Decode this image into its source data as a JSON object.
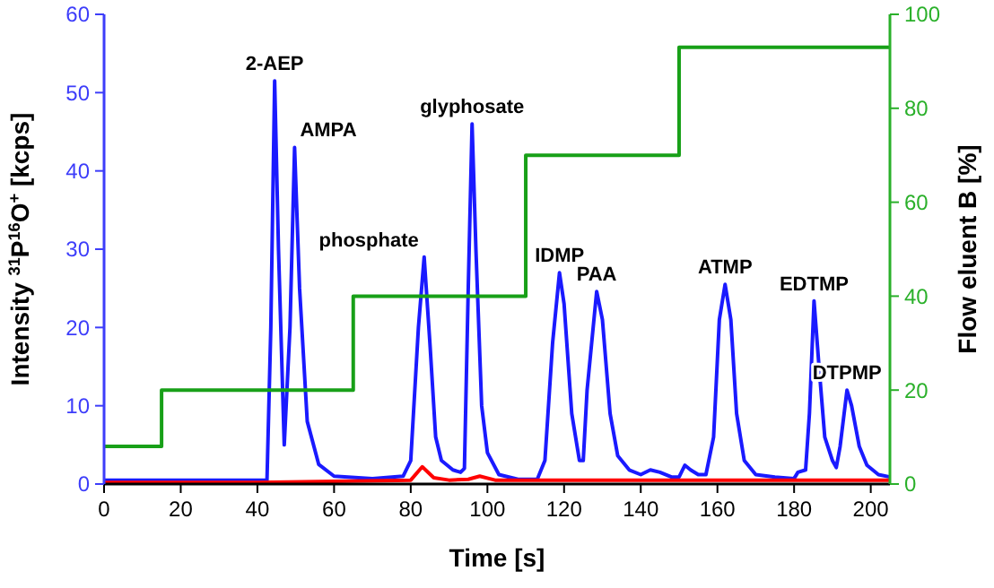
{
  "chart_data": {
    "type": "line",
    "xlabel": "Time [s]",
    "ylabel": "Intensity $^{31}$P$^{16}$O$^{+}$  [kcps]",
    "y2label": "Flow eluent B [%]",
    "xlim": [
      0,
      205
    ],
    "xticks": [
      0,
      20,
      40,
      60,
      80,
      100,
      120,
      140,
      160,
      180,
      200
    ],
    "ylim": [
      0,
      60
    ],
    "yticks": [
      0,
      10,
      20,
      30,
      40,
      50,
      60
    ],
    "y2lim": [
      0,
      100
    ],
    "y2ticks": [
      0,
      20,
      40,
      60,
      80,
      100
    ],
    "grid": false,
    "marker": "none",
    "line_style": "solid",
    "series": [
      {
        "color": "#1a1aff",
        "x": [
          0,
          20,
          42.5,
          43.5,
          44.5,
          45.5,
          47,
          48.5,
          49.7,
          51,
          53,
          56,
          60,
          70,
          78,
          80,
          82,
          83.5,
          85,
          86.5,
          88,
          91,
          93,
          94,
          95,
          96,
          97,
          98.5,
          100,
          103,
          108,
          113,
          115,
          117,
          118.8,
          120,
          122,
          124,
          125,
          126,
          128.5,
          130,
          132,
          134,
          137,
          140,
          142.5,
          145,
          148,
          150,
          151.5,
          153,
          155,
          157,
          159,
          160.5,
          162,
          163.5,
          165,
          167,
          170,
          175,
          180,
          181,
          183,
          184,
          185.2,
          186.5,
          188,
          190,
          191,
          192,
          193.8,
          195,
          197,
          199,
          202,
          205
        ],
        "values": [
          0.5,
          0.5,
          0.5,
          20,
          51.5,
          30,
          5,
          20,
          43,
          25,
          8,
          2.5,
          1,
          0.7,
          1,
          3,
          20,
          29,
          18,
          6,
          3,
          1.8,
          1.5,
          2,
          25,
          46,
          30,
          10,
          4,
          1.2,
          0.6,
          0.6,
          3,
          18,
          27,
          23,
          9,
          3,
          3,
          12,
          24.6,
          21,
          9,
          3.6,
          1.8,
          1.2,
          1.8,
          1.5,
          0.9,
          0.9,
          2.4,
          1.8,
          1.2,
          1.2,
          6,
          21,
          25.5,
          21,
          9,
          3,
          1.2,
          0.9,
          0.7,
          1.5,
          1.8,
          9,
          23.4,
          15,
          6,
          3,
          2.1,
          4.8,
          12,
          10,
          4.8,
          2.4,
          1.2,
          0.9
        ]
      },
      {
        "color": "#ff0000",
        "x": [
          0,
          40,
          80,
          83,
          86,
          90,
          95,
          98,
          102,
          120,
          205
        ],
        "values": [
          0.2,
          0.2,
          0.5,
          2.2,
          0.8,
          0.5,
          0.6,
          1,
          0.5,
          0.5,
          0.5
        ]
      },
      {
        "type": "step",
        "axis": "y2",
        "color": "#18a018",
        "x": [
          0,
          15,
          65,
          110,
          150,
          205
        ],
        "values": [
          8,
          20,
          40,
          70,
          93,
          93
        ]
      }
    ],
    "annotations": [
      {
        "text": "2-AEP",
        "x": 44.5,
        "y": 51.5
      },
      {
        "text": "AMPA",
        "x": 49.7,
        "y": 43
      },
      {
        "text": "phosphate",
        "x": 83.5,
        "y": 29
      },
      {
        "text": "glyphosate",
        "x": 96,
        "y": 46
      },
      {
        "text": "IDMP",
        "x": 118.8,
        "y": 27
      },
      {
        "text": "PAA",
        "x": 128.5,
        "y": 24.6
      },
      {
        "text": "ATMP",
        "x": 162,
        "y": 25.5
      },
      {
        "text": "EDTMP",
        "x": 185.2,
        "y": 23.4
      },
      {
        "text": "DTPMP",
        "x": 193.8,
        "y": 12
      }
    ]
  }
}
